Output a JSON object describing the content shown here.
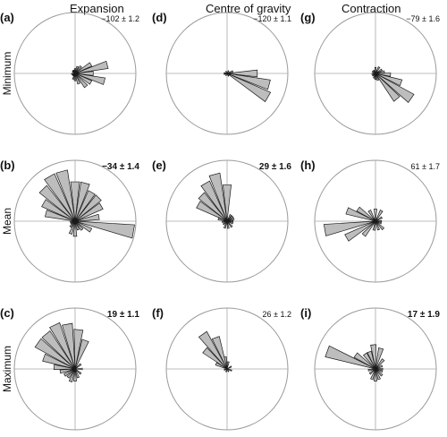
{
  "columns": [
    "Expansion",
    "Centre of gravity",
    "Contraction"
  ],
  "rows": [
    "Minimum",
    "Mean",
    "Maximum"
  ],
  "chart_data": [
    {
      "type": "rose",
      "panel": "(a)",
      "column": "Expansion",
      "row": "Minimum",
      "stat": "−102 ± 1.2",
      "stat_bold": false,
      "bins": [
        [
          -170,
          0.06
        ],
        [
          -150,
          0.05
        ],
        [
          -130,
          0.05
        ],
        [
          -110,
          0.1
        ],
        [
          -90,
          0.12
        ],
        [
          -70,
          0.18
        ],
        [
          -50,
          0.28
        ],
        [
          -30,
          0.3
        ],
        [
          -15,
          0.5
        ],
        [
          0,
          0.3
        ],
        [
          15,
          0.55
        ],
        [
          30,
          0.3
        ],
        [
          50,
          0.15
        ],
        [
          70,
          0.12
        ],
        [
          90,
          0.08
        ],
        [
          110,
          0.06
        ],
        [
          130,
          0.06
        ],
        [
          150,
          0.05
        ]
      ]
    },
    {
      "type": "rose",
      "panel": "(d)",
      "column": "Centre of gravity",
      "row": "Minimum",
      "stat": "−120 ± 1.1",
      "stat_bold": false,
      "bins": [
        [
          -165,
          0.05
        ],
        [
          -120,
          0.04
        ],
        [
          -60,
          0.05
        ],
        [
          -30,
          0.78
        ],
        [
          -15,
          0.72
        ],
        [
          0,
          0.5
        ],
        [
          20,
          0.1
        ],
        [
          60,
          0.05
        ],
        [
          120,
          0.04
        ],
        [
          170,
          0.05
        ]
      ]
    },
    {
      "type": "rose",
      "panel": "(g)",
      "column": "Contraction",
      "row": "Minimum",
      "stat": "−79 ± 1.6",
      "stat_bold": false,
      "bins": [
        [
          -170,
          0.06
        ],
        [
          -140,
          0.06
        ],
        [
          -110,
          0.08
        ],
        [
          -90,
          0.1
        ],
        [
          -70,
          0.12
        ],
        [
          -50,
          0.55
        ],
        [
          -35,
          0.72
        ],
        [
          -20,
          0.45
        ],
        [
          -5,
          0.25
        ],
        [
          10,
          0.15
        ],
        [
          30,
          0.12
        ],
        [
          60,
          0.12
        ],
        [
          90,
          0.1
        ],
        [
          120,
          0.06
        ],
        [
          150,
          0.06
        ]
      ]
    },
    {
      "type": "rose",
      "panel": "(b)",
      "column": "Expansion",
      "row": "Mean",
      "stat": "−34 ± 1.4",
      "stat_bold": true,
      "bins": [
        [
          -170,
          0.08
        ],
        [
          -150,
          0.08
        ],
        [
          -130,
          0.12
        ],
        [
          -110,
          0.22
        ],
        [
          -90,
          0.25
        ],
        [
          -70,
          0.15
        ],
        [
          -50,
          0.18
        ],
        [
          -30,
          0.3
        ],
        [
          -10,
          0.98
        ],
        [
          10,
          0.4
        ],
        [
          30,
          0.5
        ],
        [
          45,
          0.55
        ],
        [
          60,
          0.55
        ],
        [
          75,
          0.65
        ],
        [
          90,
          0.65
        ],
        [
          105,
          0.85
        ],
        [
          120,
          0.85
        ],
        [
          135,
          0.75
        ],
        [
          150,
          0.6
        ],
        [
          165,
          0.5
        ]
      ]
    },
    {
      "type": "rose",
      "panel": "(e)",
      "column": "Centre of gravity",
      "row": "Mean",
      "stat": "29 ± 1.6",
      "stat_bold": true,
      "bins": [
        [
          -170,
          0.08
        ],
        [
          -140,
          0.08
        ],
        [
          -110,
          0.12
        ],
        [
          -80,
          0.12
        ],
        [
          -50,
          0.12
        ],
        [
          -20,
          0.1
        ],
        [
          0,
          0.1
        ],
        [
          20,
          0.12
        ],
        [
          40,
          0.12
        ],
        [
          60,
          0.12
        ],
        [
          90,
          0.6
        ],
        [
          105,
          0.8
        ],
        [
          120,
          0.72
        ],
        [
          135,
          0.6
        ],
        [
          150,
          0.55
        ],
        [
          165,
          0.15
        ]
      ]
    },
    {
      "type": "rose",
      "panel": "(h)",
      "column": "Contraction",
      "row": "Mean",
      "stat": "61 ± 1.7",
      "stat_bold": false,
      "bins": [
        [
          -170,
          0.85
        ],
        [
          -150,
          0.55
        ],
        [
          -130,
          0.3
        ],
        [
          -100,
          0.15
        ],
        [
          -70,
          0.15
        ],
        [
          -45,
          0.18
        ],
        [
          -20,
          0.1
        ],
        [
          0,
          0.1
        ],
        [
          30,
          0.12
        ],
        [
          60,
          0.2
        ],
        [
          90,
          0.2
        ],
        [
          120,
          0.2
        ],
        [
          145,
          0.35
        ],
        [
          160,
          0.5
        ]
      ]
    },
    {
      "type": "rose",
      "panel": "(c)",
      "column": "Expansion",
      "row": "Maximum",
      "stat": "19 ± 1.1",
      "stat_bold": true,
      "bins": [
        [
          -170,
          0.25
        ],
        [
          -150,
          0.2
        ],
        [
          -130,
          0.18
        ],
        [
          -110,
          0.22
        ],
        [
          -90,
          0.2
        ],
        [
          -70,
          0.15
        ],
        [
          -40,
          0.12
        ],
        [
          0,
          0.12
        ],
        [
          40,
          0.12
        ],
        [
          70,
          0.5
        ],
        [
          85,
          0.65
        ],
        [
          100,
          0.75
        ],
        [
          115,
          0.8
        ],
        [
          130,
          0.75
        ],
        [
          145,
          0.75
        ],
        [
          160,
          0.55
        ],
        [
          175,
          0.35
        ]
      ]
    },
    {
      "type": "rose",
      "panel": "(f)",
      "column": "Centre of gravity",
      "row": "Maximum",
      "stat": "26 ± 1.2",
      "stat_bold": false,
      "bins": [
        [
          -160,
          0.05
        ],
        [
          -110,
          0.05
        ],
        [
          -60,
          0.05
        ],
        [
          -20,
          0.08
        ],
        [
          30,
          0.08
        ],
        [
          80,
          0.12
        ],
        [
          100,
          0.2
        ],
        [
          110,
          0.55
        ],
        [
          125,
          0.7
        ],
        [
          140,
          0.48
        ],
        [
          155,
          0.2
        ]
      ]
    },
    {
      "type": "rose",
      "panel": "(i)",
      "column": "Contraction",
      "row": "Maximum",
      "stat": "17 ± 1.9",
      "stat_bold": true,
      "bins": [
        [
          -170,
          0.12
        ],
        [
          -140,
          0.12
        ],
        [
          -110,
          0.18
        ],
        [
          -90,
          0.2
        ],
        [
          -70,
          0.18
        ],
        [
          -45,
          0.15
        ],
        [
          -20,
          0.12
        ],
        [
          0,
          0.12
        ],
        [
          25,
          0.12
        ],
        [
          50,
          0.2
        ],
        [
          75,
          0.35
        ],
        [
          95,
          0.4
        ],
        [
          110,
          0.3
        ],
        [
          125,
          0.3
        ],
        [
          145,
          0.4
        ],
        [
          160,
          0.85
        ]
      ]
    }
  ]
}
